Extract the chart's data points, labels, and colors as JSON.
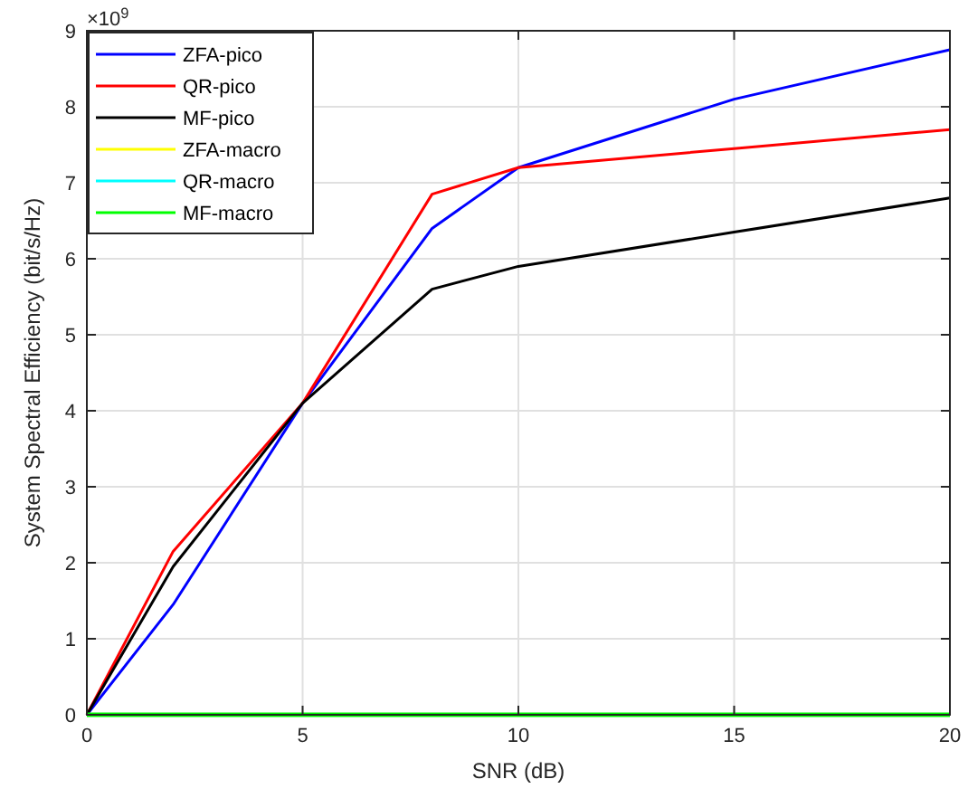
{
  "chart_data": {
    "type": "line",
    "xlabel": "SNR (dB)",
    "ylabel": "System Spectral Efficiency (bit/s/Hz)",
    "annotations": [
      "×10$^{9}$"
    ],
    "x": [
      0,
      2,
      5,
      8,
      10,
      15,
      20
    ],
    "series": [
      {
        "name": "ZFA-pico",
        "color": "#0000ff",
        "values": [
          0,
          1.45,
          4.1,
          6.4,
          7.2,
          8.1,
          8.75
        ]
      },
      {
        "name": "QR-pico",
        "color": "#ff0000",
        "values": [
          0,
          2.15,
          4.1,
          6.85,
          7.2,
          7.45,
          7.7
        ]
      },
      {
        "name": "MF-pico",
        "color": "#000000",
        "values": [
          0,
          1.95,
          4.1,
          5.6,
          5.9,
          6.35,
          6.8
        ]
      },
      {
        "name": "ZFA-macro",
        "color": "#ffff00",
        "values": [
          null,
          null,
          null,
          null,
          null,
          null,
          null
        ]
      },
      {
        "name": "QR-macro",
        "color": "#00ffff",
        "values": [
          null,
          null,
          null,
          null,
          null,
          null,
          null
        ]
      },
      {
        "name": "MF-macro",
        "color": "#00ff00",
        "values": [
          0,
          0,
          0,
          0,
          0,
          0,
          0
        ]
      }
    ],
    "xlim": [
      0,
      20
    ],
    "xticks": [
      0,
      5,
      10,
      15,
      20
    ],
    "ylim": [
      0,
      9
    ],
    "yticks": [
      0,
      1,
      2,
      3,
      4,
      5,
      6,
      7,
      8,
      9
    ],
    "grid": true,
    "legend": "top left",
    "marker": "none",
    "line_style": "solid"
  }
}
